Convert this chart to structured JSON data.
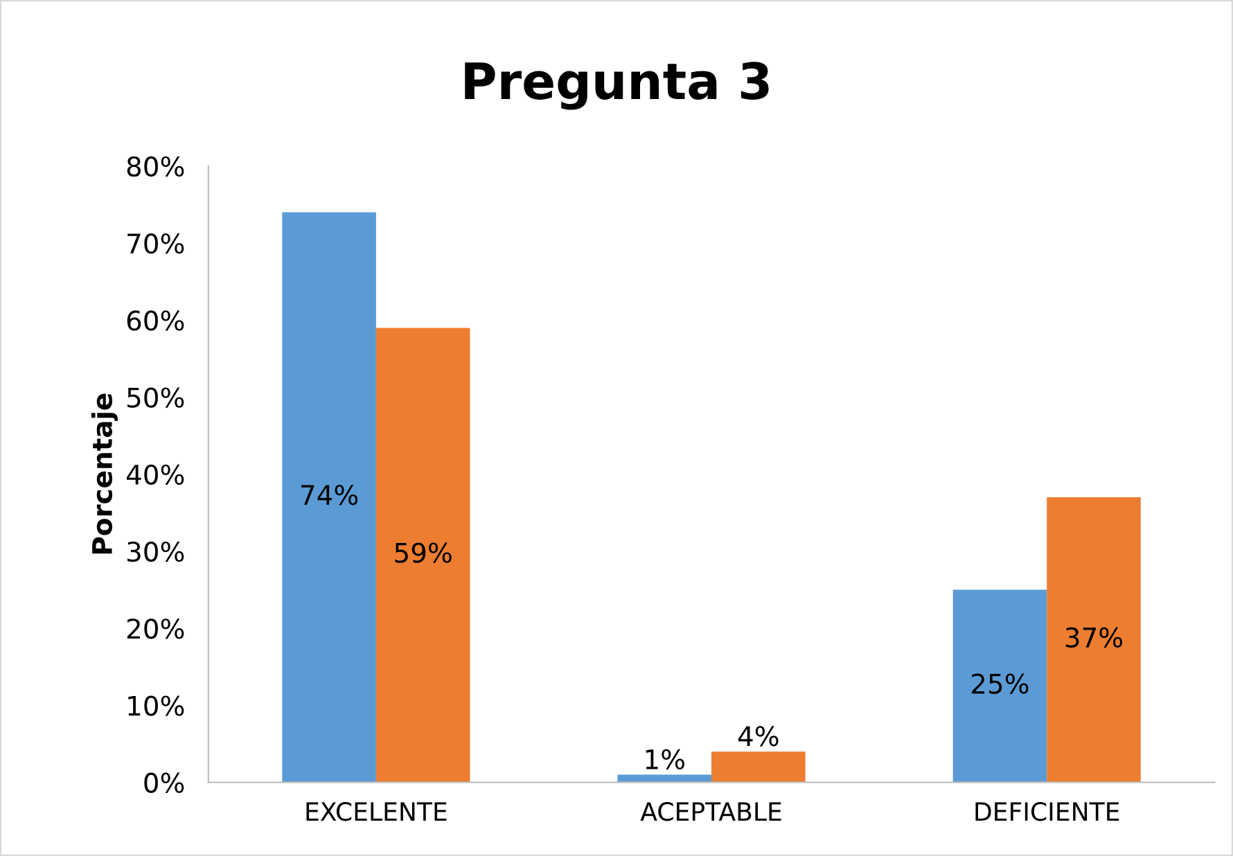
{
  "chart_data": {
    "type": "bar",
    "title": "Pregunta 3",
    "ylabel": "Porcentaje",
    "categories": [
      "EXCELENTE",
      "ACEPTABLE",
      "DEFICIENTE"
    ],
    "series": [
      {
        "color": "#5b9bd5",
        "values": [
          74,
          1,
          25
        ],
        "value_labels": [
          "74%",
          "1%",
          "25%"
        ]
      },
      {
        "color": "#ed7d31",
        "values": [
          59,
          4,
          37
        ],
        "value_labels": [
          "59%",
          "4%",
          "37%"
        ]
      }
    ],
    "ylim": [
      0,
      80
    ],
    "yticks": [
      {
        "value": 0,
        "label": "0%"
      },
      {
        "value": 10,
        "label": "10%"
      },
      {
        "value": 20,
        "label": "20%"
      },
      {
        "value": 30,
        "label": "30%"
      },
      {
        "value": 40,
        "label": "40%"
      },
      {
        "value": 50,
        "label": "50%"
      },
      {
        "value": 60,
        "label": "60%"
      },
      {
        "value": 70,
        "label": "70%"
      },
      {
        "value": 80,
        "label": "80%"
      }
    ],
    "grid": false,
    "legend": false
  }
}
